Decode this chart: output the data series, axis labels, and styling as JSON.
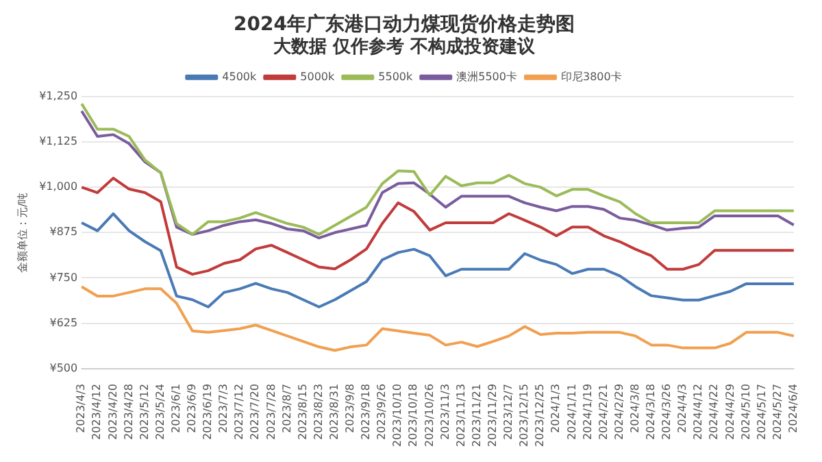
{
  "chart_data": {
    "type": "line",
    "title": "2024年广东港口动力煤现货价格走势图",
    "subtitle": "大数据 仅作参考 不构成投资建议",
    "ylabel": "金额单位：元/吨",
    "categories": [
      "2023/4/3",
      "2023/4/12",
      "2023/4/20",
      "2023/4/28",
      "2023/5/12",
      "2023/5/24",
      "2023/6/1",
      "2023/6/9",
      "2023/6/19",
      "2023/7/3",
      "2023/7/12",
      "2023/7/20",
      "2023/7/28",
      "2023/8/7",
      "2023/8/15",
      "2023/8/23",
      "2023/8/31",
      "2023/9/8",
      "2023/9/18",
      "2023/9/26",
      "2023/10/10",
      "2023/10/18",
      "2023/10/26",
      "2023/11/3",
      "2023/11/13",
      "2023/11/21",
      "2023/11/29",
      "2023/12/7",
      "2023/12/15",
      "2023/12/25",
      "2024/1/3",
      "2024/1/11",
      "2024/1/19",
      "2024/2/21",
      "2024/2/29",
      "2024/3/8",
      "2024/3/18",
      "2024/3/26",
      "2024/4/3",
      "2024/4/12",
      "2024/4/22",
      "2024/4/29",
      "2024/5/10",
      "2024/5/17",
      "2024/5/27",
      "2024/6/4"
    ],
    "series": [
      {
        "name": "4500k",
        "color": "#4a7ab5",
        "values": [
          902,
          880,
          927,
          880,
          850,
          825,
          700,
          690,
          670,
          710,
          720,
          735,
          720,
          710,
          690,
          670,
          690,
          715,
          740,
          800,
          820,
          829,
          811,
          756,
          774,
          774,
          774,
          774,
          817,
          799,
          787,
          762,
          774,
          774,
          756,
          726,
          701,
          695,
          689,
          689,
          701,
          713,
          734,
          734,
          734,
          734
        ]
      },
      {
        "name": "5000k",
        "color": "#c23b3b",
        "values": [
          1000,
          985,
          1025,
          995,
          985,
          960,
          780,
          760,
          770,
          790,
          800,
          830,
          840,
          820,
          800,
          780,
          775,
          800,
          830,
          900,
          957,
          933,
          882,
          902,
          902,
          902,
          902,
          927,
          909,
          890,
          866,
          890,
          890,
          866,
          850,
          829,
          811,
          774,
          774,
          787,
          826,
          826,
          826,
          826,
          826,
          826
        ]
      },
      {
        "name": "5500k",
        "color": "#9bbb59",
        "values": [
          1230,
          1160,
          1160,
          1140,
          1075,
          1040,
          900,
          870,
          905,
          905,
          915,
          930,
          915,
          900,
          890,
          870,
          895,
          920,
          945,
          1010,
          1045,
          1043,
          978,
          1030,
          1004,
          1012,
          1012,
          1033,
          1010,
          1000,
          976,
          994,
          994,
          976,
          960,
          927,
          902,
          902,
          902,
          902,
          935,
          935,
          935,
          935,
          935,
          935
        ]
      },
      {
        "name": "澳洲5500卡",
        "color": "#7a5c9e",
        "values": [
          1210,
          1140,
          1145,
          1120,
          1070,
          1040,
          890,
          870,
          880,
          895,
          905,
          910,
          900,
          885,
          880,
          860,
          875,
          885,
          895,
          985,
          1010,
          1012,
          981,
          945,
          975,
          975,
          975,
          975,
          957,
          945,
          935,
          947,
          947,
          939,
          915,
          909,
          896,
          882,
          887,
          890,
          921,
          921,
          921,
          921,
          921,
          896
        ]
      },
      {
        "name": "印尼3800卡",
        "color": "#f0a050",
        "values": [
          726,
          700,
          700,
          710,
          720,
          720,
          680,
          604,
          600,
          605,
          610,
          620,
          605,
          590,
          575,
          560,
          550,
          560,
          565,
          610,
          604,
          598,
          592,
          565,
          573,
          561,
          575,
          590,
          616,
          594,
          598,
          598,
          600,
          600,
          600,
          590,
          565,
          565,
          557,
          557,
          557,
          570,
          600,
          600,
          600,
          590
        ]
      }
    ],
    "ylim": [
      500,
      1250
    ],
    "yticks": [
      {
        "value": 500,
        "label": "¥500"
      },
      {
        "value": 625,
        "label": "¥625"
      },
      {
        "value": 750,
        "label": "¥750"
      },
      {
        "value": 875,
        "label": "¥875"
      },
      {
        "value": 1000,
        "label": "¥1,000"
      },
      {
        "value": 1125,
        "label": "¥1,125"
      },
      {
        "value": 1250,
        "label": "¥1,250"
      }
    ],
    "grid": "y",
    "legend": "top",
    "marker": "none",
    "line_style": "solid"
  }
}
